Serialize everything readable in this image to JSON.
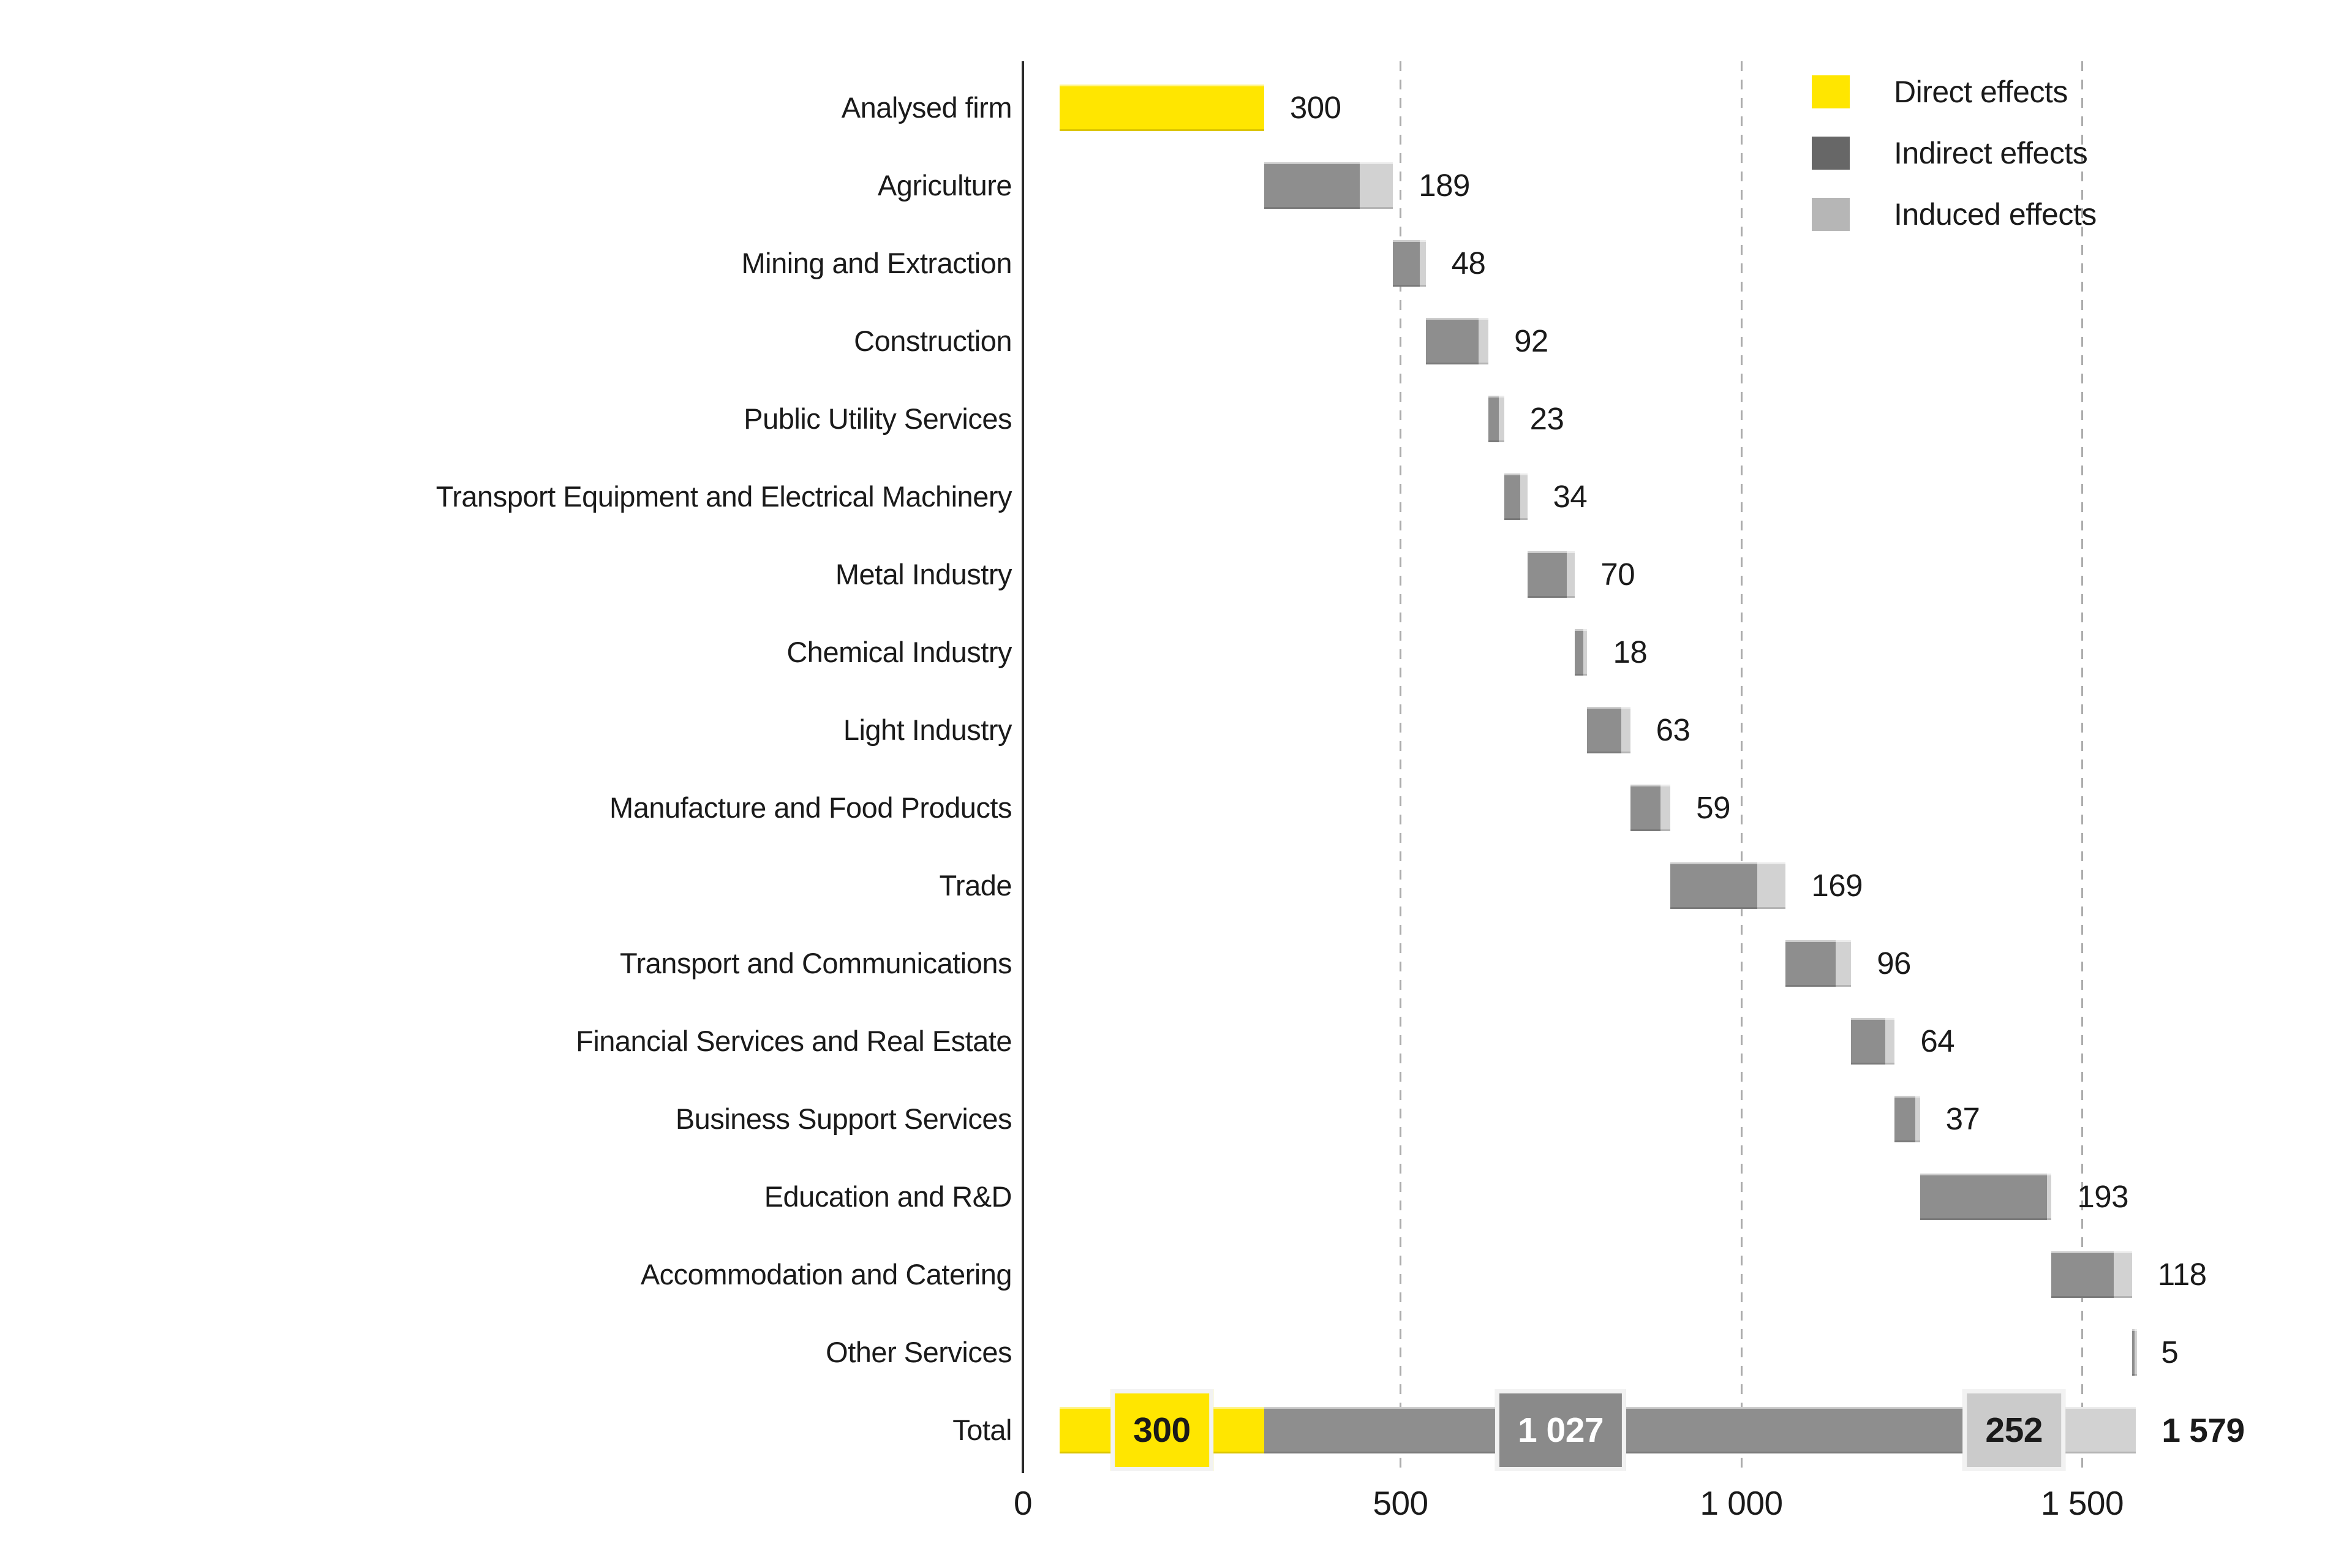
{
  "chart_data": {
    "type": "bar",
    "variant": "horizontal-waterfall",
    "title": "",
    "xlabel": "",
    "ylabel": "",
    "x_axis": {
      "range": [
        0,
        1650
      ],
      "tick_values": [
        0,
        500,
        1000,
        1500
      ],
      "ticks": [
        {
          "value": 0,
          "label": "0"
        },
        {
          "value": 500,
          "label": "500"
        },
        {
          "value": 1000,
          "label": "1 000"
        },
        {
          "value": 1500,
          "label": "1 500"
        }
      ],
      "gridlines": [
        500,
        1000,
        1500
      ],
      "grid_style": "dashed"
    },
    "legend": {
      "position": "top-right",
      "entries": [
        {
          "label": "Direct effects",
          "color": "#FFE600"
        },
        {
          "label": "Indirect effects",
          "color": "#676767"
        },
        {
          "label": "Induced effects",
          "color": "#B6B6B6"
        }
      ]
    },
    "colors": {
      "direct": "#FFE600",
      "indirect_bar": "#8E8E8E",
      "induced_bar": "#D2D2D2",
      "gridline": "#ACACAC",
      "axis": "#2A2A2A",
      "text": "#1A1A1A",
      "total_box_border": "#F2F2F2",
      "total_direct_box": "#FFE600",
      "total_indirect_box": "#8A8A8A",
      "total_indirect_box_text": "#FFFFFF",
      "total_induced_box": "#CBCBCB"
    },
    "note": "Printed totals per row are exact as shown; the split between indirect and induced within sector bars is estimated from pixel lengths.",
    "rows": [
      {
        "label": "Analysed firm",
        "start": 0,
        "direct": 300,
        "indirect": 0,
        "induced": 0,
        "total": 300,
        "value_label": "300"
      },
      {
        "label": "Agriculture",
        "start": 300,
        "direct": 0,
        "indirect": 140,
        "induced": 49,
        "total": 189,
        "value_label": "189"
      },
      {
        "label": "Mining and Extraction",
        "start": 489,
        "direct": 0,
        "indirect": 39,
        "induced": 9,
        "total": 48,
        "value_label": "48"
      },
      {
        "label": "Construction",
        "start": 537,
        "direct": 0,
        "indirect": 78,
        "induced": 14,
        "total": 92,
        "value_label": "92"
      },
      {
        "label": "Public Utility Services",
        "start": 629,
        "direct": 0,
        "indirect": 15,
        "induced": 8,
        "total": 23,
        "value_label": "23"
      },
      {
        "label": "Transport Equipment and Electrical Machinery",
        "start": 652,
        "direct": 0,
        "indirect": 24,
        "induced": 10,
        "total": 34,
        "value_label": "34"
      },
      {
        "label": "Metal Industry",
        "start": 686,
        "direct": 0,
        "indirect": 58,
        "induced": 12,
        "total": 70,
        "value_label": "70"
      },
      {
        "label": "Chemical Industry",
        "start": 756,
        "direct": 0,
        "indirect": 12,
        "induced": 6,
        "total": 18,
        "value_label": "18"
      },
      {
        "label": "Light Industry",
        "start": 774,
        "direct": 0,
        "indirect": 50,
        "induced": 13,
        "total": 63,
        "value_label": "63"
      },
      {
        "label": "Manufacture and Food Products",
        "start": 837,
        "direct": 0,
        "indirect": 44,
        "induced": 15,
        "total": 59,
        "value_label": "59"
      },
      {
        "label": "Trade",
        "start": 896,
        "direct": 0,
        "indirect": 127,
        "induced": 42,
        "total": 169,
        "value_label": "169"
      },
      {
        "label": "Transport and Communications",
        "start": 1065,
        "direct": 0,
        "indirect": 73,
        "induced": 23,
        "total": 96,
        "value_label": "96"
      },
      {
        "label": "Financial Services and Real Estate",
        "start": 1161,
        "direct": 0,
        "indirect": 50,
        "induced": 14,
        "total": 64,
        "value_label": "64"
      },
      {
        "label": "Business Support Services",
        "start": 1225,
        "direct": 0,
        "indirect": 30,
        "induced": 7,
        "total": 37,
        "value_label": "37"
      },
      {
        "label": "Education and R&D",
        "start": 1262,
        "direct": 0,
        "indirect": 186,
        "induced": 7,
        "total": 193,
        "value_label": "193"
      },
      {
        "label": "Accommodation and Catering",
        "start": 1455,
        "direct": 0,
        "indirect": 91,
        "induced": 27,
        "total": 118,
        "value_label": "118"
      },
      {
        "label": "Other Services",
        "start": 1573,
        "direct": 0,
        "indirect": 4,
        "induced": 1,
        "total": 5,
        "value_label": "5"
      },
      {
        "label": "Total",
        "start": 0,
        "direct": 300,
        "indirect": 1027,
        "induced": 252,
        "total": 1579,
        "value_label": "1 579",
        "is_total": true,
        "segment_labels": {
          "direct": "300",
          "indirect": "1 027",
          "induced": "252"
        }
      }
    ]
  }
}
